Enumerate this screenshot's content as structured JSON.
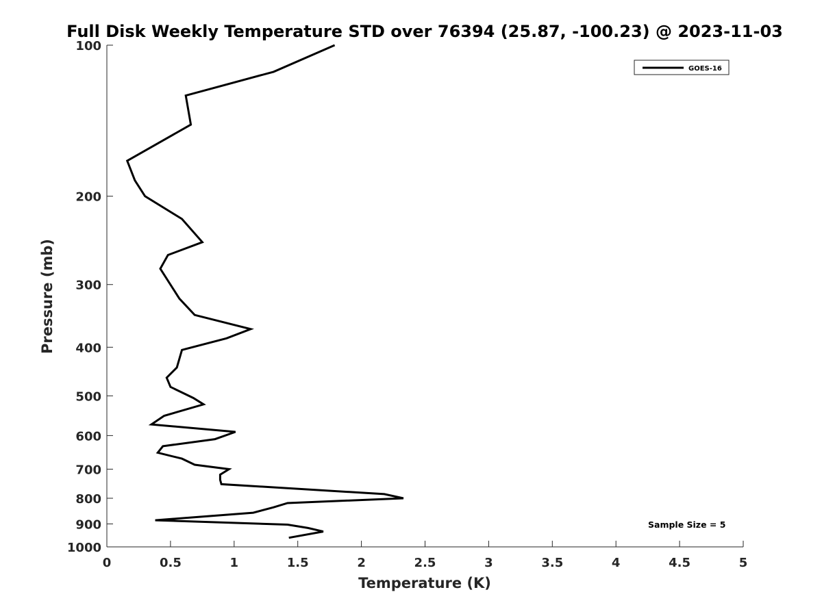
{
  "chart_data": {
    "type": "line",
    "title": "Full Disk Weekly Temperature STD over 76394 (25.87, -100.23) @ 2023-11-03",
    "xlabel": "Temperature (K)",
    "ylabel": "Pressure (mb)",
    "xlim": [
      0,
      5
    ],
    "ylim": [
      100,
      1000
    ],
    "y_scale": "log",
    "y_reversed": true,
    "x_ticks": [
      "0",
      "0.5",
      "1",
      "1.5",
      "2",
      "2.5",
      "3",
      "3.5",
      "4",
      "4.5",
      "5"
    ],
    "y_ticks": [
      "100",
      "200",
      "300",
      "400",
      "500",
      "600",
      "700",
      "800",
      "900",
      "1000"
    ],
    "grid": false,
    "legend_position": "top-right",
    "annotation": "Sample Size = 5",
    "line_color": "#000000",
    "series": [
      {
        "name": "GOES-16",
        "points": [
          [
            1.79,
            100
          ],
          [
            1.31,
            113
          ],
          [
            0.62,
            126
          ],
          [
            0.66,
            144
          ],
          [
            0.16,
            170
          ],
          [
            0.22,
            186
          ],
          [
            0.3,
            200
          ],
          [
            0.59,
            222
          ],
          [
            0.75,
            247
          ],
          [
            0.48,
            262
          ],
          [
            0.42,
            279
          ],
          [
            0.57,
            320
          ],
          [
            0.69,
            345
          ],
          [
            1.13,
            368
          ],
          [
            0.94,
            384
          ],
          [
            0.59,
            405
          ],
          [
            0.55,
            439
          ],
          [
            0.47,
            460
          ],
          [
            0.5,
            480
          ],
          [
            0.68,
            505
          ],
          [
            0.76,
            520
          ],
          [
            0.45,
            548
          ],
          [
            0.35,
            570
          ],
          [
            1.01,
            590
          ],
          [
            0.85,
            610
          ],
          [
            0.44,
            630
          ],
          [
            0.4,
            649
          ],
          [
            0.59,
            667
          ],
          [
            0.69,
            686
          ],
          [
            0.96,
            700
          ],
          [
            0.89,
            718
          ],
          [
            0.89,
            735
          ],
          [
            0.9,
            750
          ],
          [
            2.18,
            785
          ],
          [
            2.33,
            800
          ],
          [
            1.42,
            818
          ],
          [
            1.31,
            834
          ],
          [
            1.15,
            855
          ],
          [
            0.38,
            885
          ],
          [
            1.42,
            903
          ],
          [
            1.58,
            917
          ],
          [
            1.7,
            932
          ],
          [
            1.43,
            959
          ]
        ]
      }
    ]
  }
}
